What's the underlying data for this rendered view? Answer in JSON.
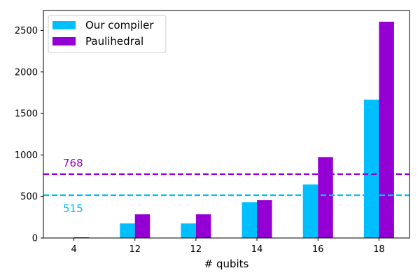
{
  "chart_data": {
    "type": "bar",
    "xlabel": "# qubits",
    "ylabel": "",
    "categories": [
      "4",
      "12",
      "12",
      "14",
      "16",
      "18"
    ],
    "series": [
      {
        "name": "Our compiler",
        "color": "#00bfff",
        "values": [
          0,
          175,
          175,
          430,
          645,
          1665
        ]
      },
      {
        "name": "Paulihedral",
        "color": "#9400d3",
        "values": [
          8,
          285,
          285,
          455,
          975,
          2605
        ]
      }
    ],
    "ylim": [
      0,
      2740
    ],
    "yticks": [
      0,
      500,
      1000,
      1500,
      2000,
      2500
    ],
    "reference_lines": [
      {
        "value": 768,
        "label": "768",
        "color": "#9400d3",
        "style": "dashed"
      },
      {
        "value": 515,
        "label": "515",
        "color": "#00bfff",
        "style": "dashed"
      }
    ],
    "legend_position": "top-left",
    "grid": false
  }
}
